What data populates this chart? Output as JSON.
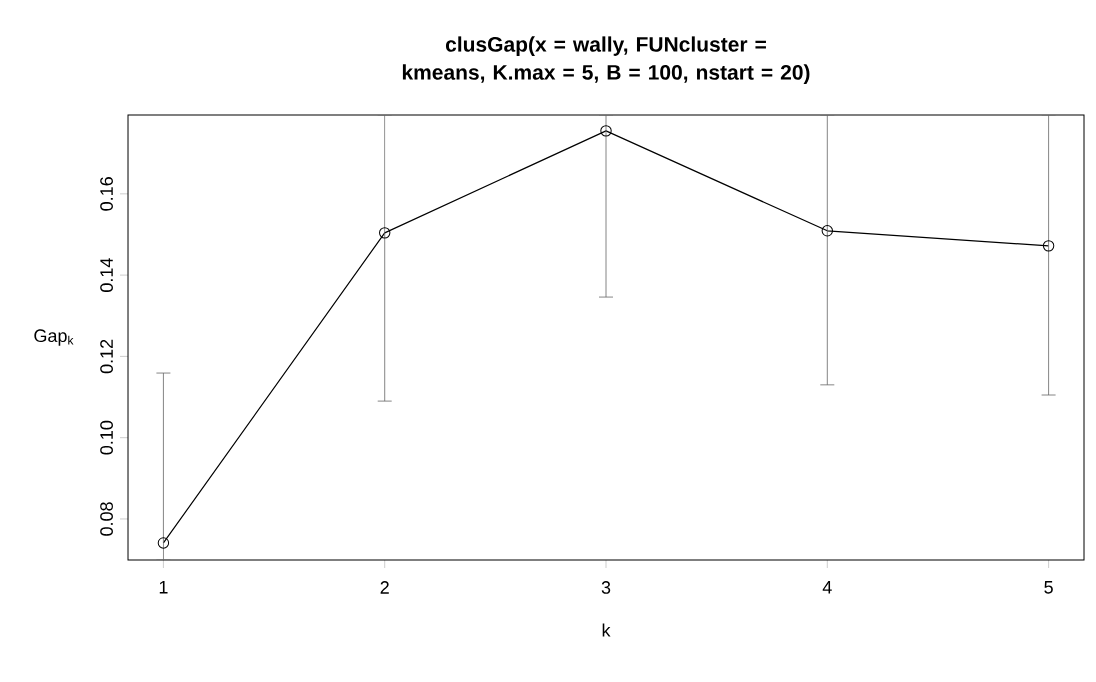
{
  "chart_data": {
    "type": "line",
    "title": "clusGap(x = wally, FUNcluster = kmeans, K.max = 5, B = 100, nstart = 20)",
    "xlabel": "k",
    "ylabel": "Gap$_{k}$",
    "x": [
      1,
      2,
      3,
      4,
      5
    ],
    "values": [
      0.0741,
      0.1504,
      0.1755,
      0.1509,
      0.1472
    ],
    "errors": [
      [
        0.0699,
        0.1159
      ],
      [
        0.109,
        0.1794
      ],
      [
        0.1346,
        0.1794
      ],
      [
        0.113,
        0.1794
      ],
      [
        0.1105,
        0.1794
      ]
    ],
    "color": "#000000",
    "xlim": [
      0.84,
      5.16
    ],
    "ylim": [
      0.0699,
      0.1794
    ],
    "xticks": [
      1,
      2,
      3,
      4,
      5
    ],
    "yticks": [
      0.08,
      {
        "value": 0.1,
        "label": "0.10"
      },
      0.12,
      0.14,
      0.16
    ],
    "marker": "circle",
    "line_style": "solid"
  }
}
